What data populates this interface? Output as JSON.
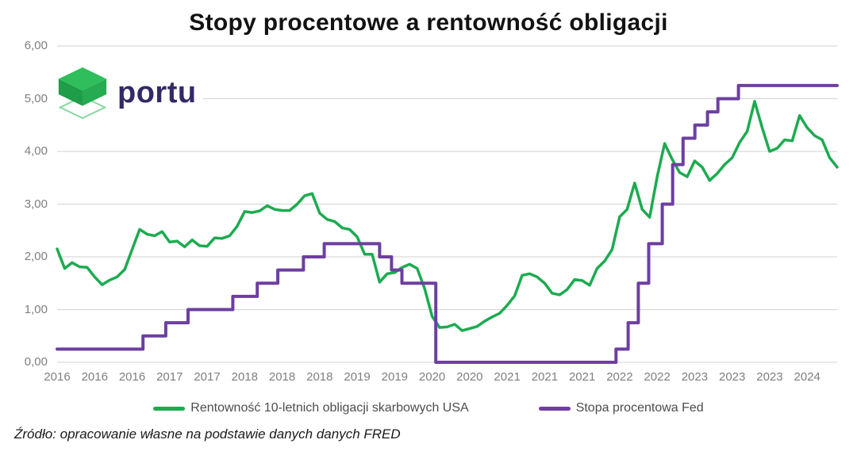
{
  "header": {
    "title": "Stopy procentowe a rentowność obligacji"
  },
  "logo": {
    "text": "portu",
    "text_color": "#322a66",
    "cube_top": "#2fbe5b",
    "cube_left": "#1f9d48",
    "cube_right": "#26aa52",
    "diamond_outline": "#86d79f"
  },
  "source_note": "Źródło: opracowanie własne na podstawie danych danych FRED",
  "colors": {
    "background": "#ffffff",
    "grid": "#d9d9d9",
    "axis_label": "#7f7f7f",
    "legend_text": "#4d4d4d",
    "title": "#121212"
  },
  "chart_data": {
    "type": "line",
    "title": "Stopy procentowe a rentowność obligacji",
    "grid": "horizontal",
    "legend_position": "bottom",
    "y_axis": {
      "min": 0,
      "max": 6,
      "tick_step": 1,
      "decimal_separator": ",",
      "tick_labels": [
        "0,00",
        "1,00",
        "2,00",
        "3,00",
        "4,00",
        "5,00",
        "6,00"
      ]
    },
    "x_axis": {
      "start_month": "2016-01",
      "end_month": "2024-09",
      "tick_interval_months": 5,
      "tick_labels": [
        "2016",
        "2016",
        "2016",
        "2017",
        "2017",
        "2018",
        "2018",
        "2018",
        "2019",
        "2019",
        "2020",
        "2020",
        "2021",
        "2021",
        "2021",
        "2022",
        "2022",
        "2023",
        "2023",
        "2023",
        "2024"
      ]
    },
    "series": [
      {
        "name": "Rentowność 10-letnich obligacji skarbowych USA",
        "color": "#1cab50",
        "line_style": "solid",
        "stroke_width": 3.5,
        "data_interval": "monthly",
        "start_month": "2016-01",
        "values": [
          2.15,
          1.78,
          1.89,
          1.81,
          1.8,
          1.62,
          1.47,
          1.56,
          1.62,
          1.76,
          2.14,
          2.52,
          2.43,
          2.4,
          2.48,
          2.28,
          2.3,
          2.19,
          2.32,
          2.21,
          2.2,
          2.36,
          2.35,
          2.4,
          2.58,
          2.86,
          2.84,
          2.87,
          2.97,
          2.9,
          2.88,
          2.88,
          3.0,
          3.16,
          3.2,
          2.83,
          2.71,
          2.67,
          2.55,
          2.52,
          2.38,
          2.05,
          2.05,
          1.52,
          1.68,
          1.7,
          1.8,
          1.86,
          1.78,
          1.4,
          0.87,
          0.66,
          0.67,
          0.72,
          0.6,
          0.64,
          0.68,
          0.78,
          0.86,
          0.93,
          1.08,
          1.26,
          1.65,
          1.68,
          1.62,
          1.5,
          1.31,
          1.28,
          1.38,
          1.57,
          1.55,
          1.46,
          1.78,
          1.92,
          2.14,
          2.76,
          2.9,
          3.4,
          2.9,
          2.75,
          3.52,
          4.15,
          3.85,
          3.6,
          3.52,
          3.82,
          3.7,
          3.45,
          3.58,
          3.75,
          3.88,
          4.17,
          4.38,
          4.95,
          4.45,
          4.0,
          4.06,
          4.22,
          4.2,
          4.68,
          4.45,
          4.3,
          4.22,
          3.88,
          3.7
        ]
      },
      {
        "name": "Stopa procentowa Fed",
        "color": "#6d3fa0",
        "line_style": "step",
        "stroke_width": 4,
        "points": [
          [
            "2016-01-01",
            0.25
          ],
          [
            "2016-12-15",
            0.5
          ],
          [
            "2017-03-16",
            0.75
          ],
          [
            "2017-06-15",
            1.0
          ],
          [
            "2017-12-14",
            1.25
          ],
          [
            "2018-03-22",
            1.5
          ],
          [
            "2018-06-14",
            1.75
          ],
          [
            "2018-09-27",
            2.0
          ],
          [
            "2018-12-20",
            2.25
          ],
          [
            "2019-08-01",
            2.0
          ],
          [
            "2019-09-19",
            1.75
          ],
          [
            "2019-10-31",
            1.5
          ],
          [
            "2020-03-16",
            0.0
          ],
          [
            "2022-03-17",
            0.25
          ],
          [
            "2022-05-05",
            0.75
          ],
          [
            "2022-06-16",
            1.5
          ],
          [
            "2022-07-28",
            2.25
          ],
          [
            "2022-09-22",
            3.0
          ],
          [
            "2022-11-03",
            3.75
          ],
          [
            "2022-12-15",
            4.25
          ],
          [
            "2023-02-02",
            4.5
          ],
          [
            "2023-03-23",
            4.75
          ],
          [
            "2023-05-04",
            5.0
          ],
          [
            "2023-07-27",
            5.25
          ],
          [
            "2024-09-30",
            5.25
          ]
        ]
      }
    ]
  }
}
